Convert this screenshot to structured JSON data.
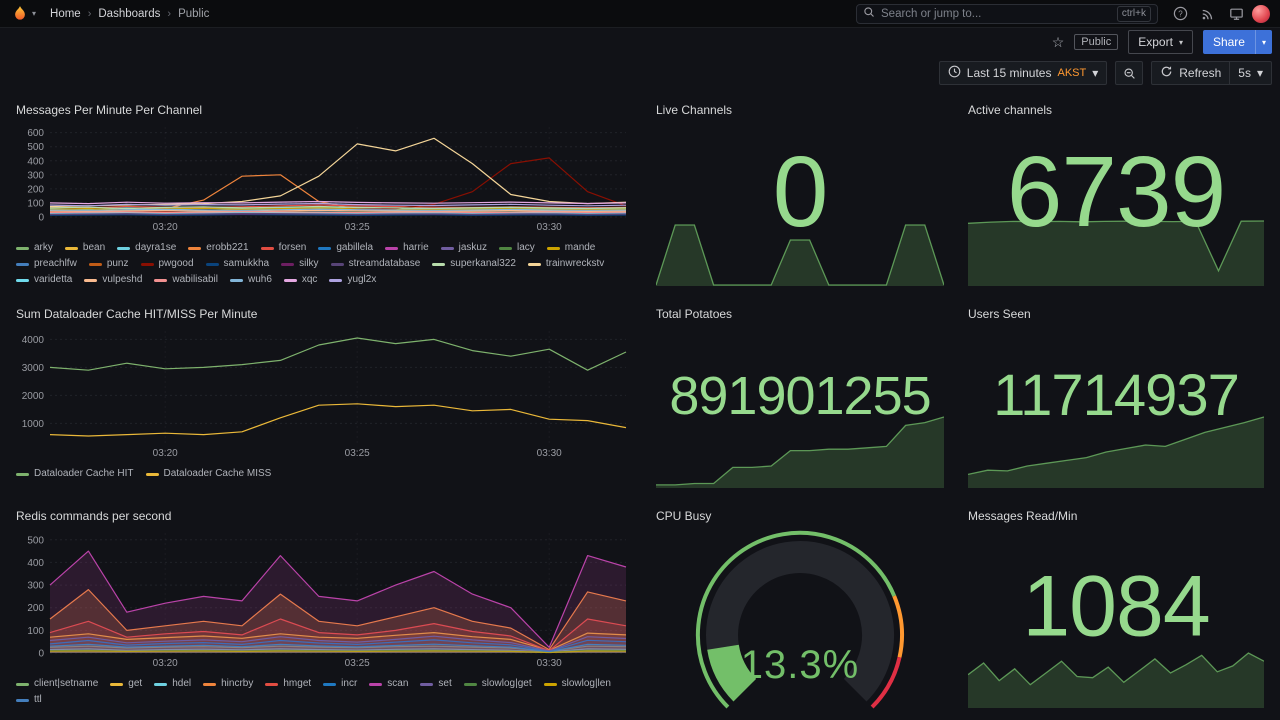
{
  "nav": {
    "breadcrumb": [
      "Home",
      "Dashboards",
      "Public"
    ],
    "search": {
      "placeholder": "Search or jump to...",
      "shortcut": "ctrl+k"
    }
  },
  "subheader": {
    "visibility_badge": "Public",
    "export_label": "Export",
    "share_label": "Share"
  },
  "toolbar": {
    "time_range": "Last 15 minutes",
    "timezone": "AKST",
    "refresh_label": "Refresh",
    "interval": "5s"
  },
  "colors": {
    "accent_blue": "#3D71D9",
    "stat_green": "#96D98D",
    "series_green": "#73BF69",
    "timezone_orange": "#FF9830",
    "brand_flame_orange": "#F46800",
    "threshold_red": "#E02F44"
  },
  "panels": {
    "messages": {
      "title": "Messages Per Minute Per Channel",
      "type": "line",
      "y_min": 0,
      "y_max": 640,
      "y_ticks": [
        0,
        100,
        200,
        300,
        400,
        500,
        600
      ],
      "x_ticks": [
        "03:20",
        "03:25",
        "03:30"
      ],
      "x_tick_idx": [
        3,
        8,
        13
      ],
      "series": [
        {
          "name": "arky",
          "color": "#7EB26D",
          "values": [
            45,
            50,
            40,
            55,
            48,
            52,
            60,
            55,
            55,
            55,
            50,
            45,
            50,
            48,
            52,
            50
          ]
        },
        {
          "name": "bean",
          "color": "#EAB839",
          "values": [
            20,
            25,
            30,
            22,
            28,
            25,
            30,
            35,
            30,
            28,
            25,
            22,
            26,
            30,
            28,
            25
          ]
        },
        {
          "name": "dayra1se",
          "color": "#6ED0E0",
          "values": [
            60,
            55,
            65,
            58,
            62,
            60,
            66,
            70,
            64,
            60,
            58,
            62,
            66,
            60,
            58,
            62
          ]
        },
        {
          "name": "erobb221",
          "color": "#EF843C",
          "values": [
            35,
            40,
            45,
            60,
            120,
            290,
            300,
            110,
            55,
            45,
            42,
            40,
            38,
            36,
            40,
            42
          ]
        },
        {
          "name": "forsen",
          "color": "#E24D42",
          "values": [
            70,
            65,
            75,
            70,
            68,
            72,
            80,
            85,
            78,
            74,
            70,
            68,
            72,
            70,
            66,
            70
          ]
        },
        {
          "name": "gabillela",
          "color": "#1F78C1",
          "values": [
            30,
            35,
            28,
            32,
            36,
            30,
            34,
            38,
            32,
            30,
            28,
            32,
            34,
            30,
            28,
            30
          ]
        },
        {
          "name": "harrie",
          "color": "#BA43A9",
          "values": [
            15,
            18,
            20,
            16,
            18,
            22,
            20,
            18,
            16,
            18,
            20,
            22,
            18,
            16,
            18,
            20
          ]
        },
        {
          "name": "jaskuz",
          "color": "#705DA0",
          "values": [
            25,
            28,
            22,
            26,
            30,
            24,
            28,
            30,
            26,
            24,
            26,
            28,
            24,
            22,
            26,
            28
          ]
        },
        {
          "name": "lacy",
          "color": "#508642",
          "values": [
            40,
            38,
            42,
            44,
            40,
            38,
            42,
            46,
            42,
            40,
            38,
            40,
            44,
            40,
            38,
            40
          ]
        },
        {
          "name": "mande",
          "color": "#CCA300",
          "values": [
            55,
            60,
            50,
            58,
            62,
            55,
            60,
            65,
            58,
            55,
            52,
            56,
            60,
            55,
            52,
            56
          ]
        },
        {
          "name": "preachlfw",
          "color": "#447EBC",
          "values": [
            20,
            22,
            24,
            20,
            22,
            26,
            24,
            22,
            20,
            22,
            24,
            20,
            22,
            24,
            20,
            22
          ]
        },
        {
          "name": "punz",
          "color": "#C15C17",
          "values": [
            48,
            45,
            52,
            48,
            50,
            46,
            52,
            56,
            50,
            46,
            44,
            48,
            52,
            48,
            44,
            48
          ]
        },
        {
          "name": "pwgood",
          "color": "#890F02",
          "values": [
            35,
            38,
            42,
            40,
            44,
            42,
            46,
            50,
            55,
            60,
            90,
            180,
            380,
            420,
            180,
            80
          ]
        },
        {
          "name": "samukkha",
          "color": "#0A437C",
          "values": [
            12,
            14,
            16,
            12,
            14,
            18,
            16,
            14,
            12,
            14,
            16,
            12,
            14,
            16,
            12,
            14
          ]
        },
        {
          "name": "silky",
          "color": "#6D1F62",
          "values": [
            22,
            20,
            24,
            26,
            22,
            20,
            24,
            28,
            24,
            22,
            20,
            22,
            26,
            22,
            20,
            22
          ]
        },
        {
          "name": "streamdatabase",
          "color": "#584477",
          "values": [
            18,
            20,
            22,
            18,
            20,
            24,
            22,
            20,
            18,
            20,
            22,
            18,
            20,
            22,
            18,
            20
          ]
        },
        {
          "name": "superkanal322",
          "color": "#B7DBAB",
          "values": [
            65,
            70,
            60,
            68,
            72,
            65,
            70,
            75,
            68,
            65,
            62,
            66,
            70,
            65,
            62,
            66
          ]
        },
        {
          "name": "trainwreckstv",
          "color": "#F4D598",
          "values": [
            75,
            80,
            85,
            90,
            95,
            110,
            150,
            290,
            520,
            470,
            560,
            380,
            160,
            110,
            95,
            105
          ]
        },
        {
          "name": "varidetta",
          "color": "#70DBED",
          "values": [
            28,
            30,
            32,
            28,
            30,
            34,
            32,
            30,
            28,
            30,
            32,
            28,
            30,
            32,
            28,
            30
          ]
        },
        {
          "name": "vulpeshd",
          "color": "#F9BA8F",
          "values": [
            42,
            40,
            44,
            46,
            42,
            40,
            44,
            48,
            44,
            42,
            40,
            42,
            46,
            42,
            40,
            42
          ]
        },
        {
          "name": "wabilisabil",
          "color": "#F29191",
          "values": [
            32,
            34,
            36,
            32,
            34,
            38,
            36,
            34,
            32,
            34,
            36,
            32,
            34,
            36,
            32,
            34
          ]
        },
        {
          "name": "wuh6",
          "color": "#82B5D8",
          "values": [
            50,
            48,
            52,
            54,
            50,
            48,
            52,
            56,
            52,
            50,
            48,
            50,
            54,
            50,
            48,
            50
          ]
        },
        {
          "name": "xqc",
          "color": "#E5A8E2",
          "values": [
            100,
            95,
            105,
            98,
            102,
            100,
            106,
            110,
            104,
            100,
            98,
            102,
            106,
            100,
            96,
            100
          ]
        },
        {
          "name": "yugl2x",
          "color": "#AEA2E0",
          "values": [
            85,
            80,
            90,
            84,
            88,
            86,
            92,
            96,
            88,
            84,
            82,
            86,
            90,
            84,
            80,
            84
          ]
        }
      ]
    },
    "live_channels": {
      "title": "Live Channels",
      "value": "0",
      "spark": [
        0,
        4,
        4,
        0,
        0,
        0,
        0,
        3,
        3,
        0,
        0,
        0,
        0,
        4,
        4,
        0
      ]
    },
    "active_channels": {
      "title": "Active channels",
      "value": "6739",
      "spark": [
        6500,
        6620,
        6700,
        6680,
        6700,
        6650,
        6700,
        6720,
        6700,
        6680,
        6700,
        1500,
        6720,
        6739
      ]
    },
    "total_potatoes": {
      "title": "Total Potatoes",
      "value": "891901255",
      "spark": [
        3,
        3,
        5,
        5,
        28,
        28,
        30,
        52,
        52,
        54,
        54,
        56,
        58,
        88,
        92,
        100
      ]
    },
    "users_seen": {
      "title": "Users Seen",
      "value": "11714937",
      "spark": [
        18,
        24,
        23,
        30,
        34,
        38,
        42,
        50,
        55,
        60,
        58,
        68,
        78,
        85,
        92,
        100
      ]
    },
    "dataloader": {
      "title": "Sum Dataloader Cache HIT/MISS Per Minute",
      "type": "line",
      "y_min": 300,
      "y_max": 4300,
      "y_ticks": [
        1000,
        2000,
        3000,
        4000
      ],
      "x_ticks": [
        "03:20",
        "03:25",
        "03:30"
      ],
      "x_tick_idx": [
        3,
        8,
        13
      ],
      "series": [
        {
          "name": "Dataloader Cache HIT",
          "color": "#7EB26D",
          "values": [
            3000,
            2900,
            3150,
            2950,
            3000,
            3100,
            3250,
            3800,
            4050,
            3850,
            4000,
            3600,
            3400,
            3650,
            2900,
            3550
          ]
        },
        {
          "name": "Dataloader Cache MISS",
          "color": "#EAB839",
          "values": [
            600,
            550,
            600,
            650,
            600,
            700,
            1200,
            1650,
            1700,
            1600,
            1650,
            1450,
            1500,
            1150,
            1100,
            850
          ]
        }
      ]
    },
    "redis": {
      "title": "Redis commands per second",
      "type": "line",
      "y_min": 0,
      "y_max": 530,
      "y_ticks": [
        0,
        100,
        200,
        300,
        400,
        500
      ],
      "x_ticks": [
        "03:20",
        "03:25",
        "03:30"
      ],
      "x_tick_idx": [
        3,
        8,
        13
      ],
      "series": [
        {
          "name": "client|setname",
          "color": "#7EB26D",
          "fill": 0.12,
          "values": [
            25,
            30,
            22,
            26,
            28,
            24,
            30,
            26,
            24,
            28,
            30,
            26,
            22,
            8,
            30,
            28
          ]
        },
        {
          "name": "get",
          "color": "#EAB839",
          "fill": 0.12,
          "values": [
            70,
            85,
            60,
            68,
            75,
            65,
            85,
            70,
            65,
            78,
            90,
            72,
            60,
            12,
            88,
            80
          ]
        },
        {
          "name": "hdel",
          "color": "#6ED0E0",
          "fill": 0.12,
          "values": [
            15,
            18,
            12,
            15,
            17,
            14,
            18,
            15,
            13,
            16,
            18,
            15,
            12,
            5,
            18,
            16
          ]
        },
        {
          "name": "hincrby",
          "color": "#EF843C",
          "fill": 0.22,
          "values": [
            150,
            280,
            100,
            120,
            140,
            120,
            260,
            140,
            120,
            160,
            200,
            140,
            110,
            15,
            270,
            230
          ]
        },
        {
          "name": "hmget",
          "color": "#E24D42",
          "fill": 0.18,
          "values": [
            90,
            140,
            70,
            85,
            95,
            80,
            150,
            90,
            80,
            100,
            130,
            95,
            75,
            10,
            150,
            120
          ]
        },
        {
          "name": "incr",
          "color": "#1F78C1",
          "fill": 0.12,
          "values": [
            40,
            55,
            35,
            42,
            46,
            38,
            55,
            44,
            38,
            48,
            58,
            45,
            36,
            8,
            56,
            50
          ]
        },
        {
          "name": "scan",
          "color": "#BA43A9",
          "fill": 0.16,
          "values": [
            300,
            450,
            180,
            220,
            250,
            230,
            430,
            250,
            230,
            300,
            360,
            260,
            200,
            25,
            430,
            380
          ]
        },
        {
          "name": "set",
          "color": "#705DA0",
          "fill": 0.12,
          "values": [
            55,
            70,
            45,
            52,
            58,
            50,
            72,
            55,
            48,
            60,
            74,
            58,
            46,
            9,
            72,
            64
          ]
        },
        {
          "name": "slowlog|get",
          "color": "#508642",
          "fill": 0.12,
          "values": [
            10,
            12,
            8,
            10,
            11,
            9,
            12,
            10,
            9,
            11,
            12,
            10,
            8,
            3,
            12,
            11
          ]
        },
        {
          "name": "slowlog|len",
          "color": "#CCA300",
          "fill": 0.12,
          "values": [
            8,
            9,
            7,
            8,
            9,
            7,
            9,
            8,
            7,
            8,
            9,
            8,
            7,
            2,
            9,
            8
          ]
        },
        {
          "name": "ttl",
          "color": "#447EBC",
          "fill": 0.12,
          "values": [
            30,
            38,
            26,
            30,
            34,
            28,
            38,
            31,
            27,
            33,
            39,
            32,
            26,
            6,
            38,
            34
          ]
        }
      ]
    },
    "cpu": {
      "title": "CPU Busy",
      "value": "13.3%",
      "percent": 13.3,
      "thresholds": [
        {
          "to": 75,
          "color": "#73BF69"
        },
        {
          "to": 88,
          "color": "#FF9830"
        },
        {
          "to": 100,
          "color": "#E02F44"
        }
      ]
    },
    "messages_read": {
      "title": "Messages Read/Min",
      "value": "1084",
      "spark": [
        55,
        75,
        45,
        65,
        38,
        58,
        78,
        52,
        50,
        68,
        42,
        62,
        82,
        58,
        72,
        88,
        60,
        70,
        92,
        78
      ]
    }
  }
}
